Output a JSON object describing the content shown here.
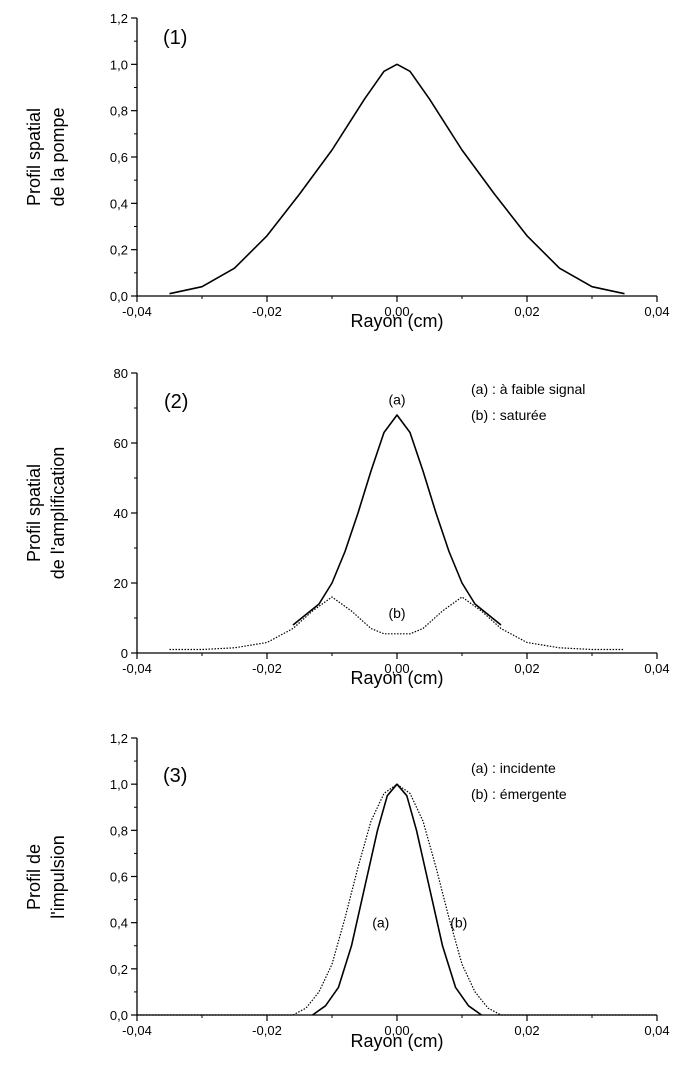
{
  "chart_data": [
    {
      "type": "line",
      "panel_label": "(1)",
      "xlabel": "Rayon (cm)",
      "ylabel_lines": [
        "Profil spatial",
        "de la pompe"
      ],
      "xlim": [
        -0.04,
        0.04
      ],
      "ylim": [
        0.0,
        1.2
      ],
      "x_ticks": [
        "-0,04",
        "-0,02",
        "0,00",
        "0,02",
        "0,04"
      ],
      "y_ticks": [
        "0,0",
        "0,2",
        "0,4",
        "0,6",
        "0,8",
        "1,0",
        "1,2"
      ],
      "grid": false,
      "legend": [],
      "curve_labels": [],
      "series": [
        {
          "style": "solid",
          "x": [
            -0.035,
            -0.03,
            -0.025,
            -0.02,
            -0.015,
            -0.01,
            -0.005,
            -0.002,
            0.0,
            0.002,
            0.005,
            0.01,
            0.015,
            0.02,
            0.025,
            0.03,
            0.035
          ],
          "y": [
            0.01,
            0.04,
            0.12,
            0.26,
            0.44,
            0.63,
            0.85,
            0.97,
            1.0,
            0.97,
            0.85,
            0.63,
            0.44,
            0.26,
            0.12,
            0.04,
            0.01
          ]
        }
      ]
    },
    {
      "type": "line",
      "panel_label": "(2)",
      "xlabel": "Rayon (cm)",
      "ylabel_lines": [
        "Profil spatial",
        "de l'amplification"
      ],
      "xlim": [
        -0.04,
        0.04
      ],
      "ylim": [
        0,
        80
      ],
      "x_ticks": [
        "-0,04",
        "-0,02",
        "0,00",
        "0,02",
        "0,04"
      ],
      "y_ticks": [
        "0",
        "20",
        "40",
        "60",
        "80"
      ],
      "grid": false,
      "legend": [
        "(a) : à faible signal",
        "(b) : saturée"
      ],
      "curve_labels": [
        {
          "text": "(a)",
          "x": 0.0,
          "y": 71
        },
        {
          "text": "(b)",
          "x": 0.0,
          "y": 10
        }
      ],
      "series": [
        {
          "style": "solid",
          "x": [
            -0.016,
            -0.014,
            -0.012,
            -0.01,
            -0.008,
            -0.006,
            -0.004,
            -0.002,
            0.0,
            0.002,
            0.004,
            0.006,
            0.008,
            0.01,
            0.012,
            0.014,
            0.016
          ],
          "y": [
            8,
            11,
            14,
            20,
            29,
            40,
            52,
            63,
            68,
            63,
            52,
            40,
            29,
            20,
            14,
            11,
            8
          ]
        },
        {
          "style": "dotted",
          "x": [
            -0.035,
            -0.03,
            -0.025,
            -0.02,
            -0.016,
            -0.013,
            -0.01,
            -0.007,
            -0.004,
            -0.002,
            0.0,
            0.002,
            0.004,
            0.007,
            0.01,
            0.013,
            0.016,
            0.02,
            0.025,
            0.03,
            0.035
          ],
          "y": [
            1,
            1,
            1.5,
            3,
            7,
            12,
            16,
            12,
            7,
            5.5,
            5.5,
            5.5,
            7,
            12,
            16,
            12,
            7,
            3,
            1.5,
            1,
            1
          ]
        }
      ]
    },
    {
      "type": "line",
      "panel_label": "(3)",
      "xlabel": "Rayon (cm)",
      "ylabel_lines": [
        "Profil de",
        "l'impulsion"
      ],
      "xlim": [
        -0.04,
        0.04
      ],
      "ylim": [
        0.0,
        1.2
      ],
      "x_ticks": [
        "-0,04",
        "-0,02",
        "0,00",
        "0,02",
        "0,04"
      ],
      "y_ticks": [
        "0,0",
        "0,2",
        "0,4",
        "0,6",
        "0,8",
        "1,0",
        "1,2"
      ],
      "grid": false,
      "legend": [
        "(a) : incidente",
        "(b) : émergente"
      ],
      "curve_labels": [
        {
          "text": "(a)",
          "x": -0.0025,
          "y": 0.38
        },
        {
          "text": "(b)",
          "x": 0.0095,
          "y": 0.38
        }
      ],
      "series": [
        {
          "style": "solid",
          "x": [
            -0.013,
            -0.011,
            -0.009,
            -0.007,
            -0.005,
            -0.003,
            -0.0015,
            0.0,
            0.0015,
            0.003,
            0.005,
            0.007,
            0.009,
            0.011,
            0.013
          ],
          "y": [
            0.0,
            0.04,
            0.12,
            0.3,
            0.55,
            0.8,
            0.95,
            1.0,
            0.95,
            0.8,
            0.55,
            0.3,
            0.12,
            0.04,
            0.0
          ]
        },
        {
          "style": "dotted",
          "x": [
            -0.04,
            -0.016,
            -0.014,
            -0.012,
            -0.01,
            -0.008,
            -0.006,
            -0.004,
            -0.002,
            0.0,
            0.002,
            0.004,
            0.006,
            0.008,
            0.01,
            0.012,
            0.014,
            0.016,
            0.04
          ],
          "y": [
            0.0,
            0.0,
            0.03,
            0.1,
            0.22,
            0.42,
            0.64,
            0.84,
            0.96,
            1.0,
            0.96,
            0.84,
            0.64,
            0.42,
            0.22,
            0.1,
            0.03,
            0.0,
            0.0
          ]
        }
      ]
    }
  ]
}
